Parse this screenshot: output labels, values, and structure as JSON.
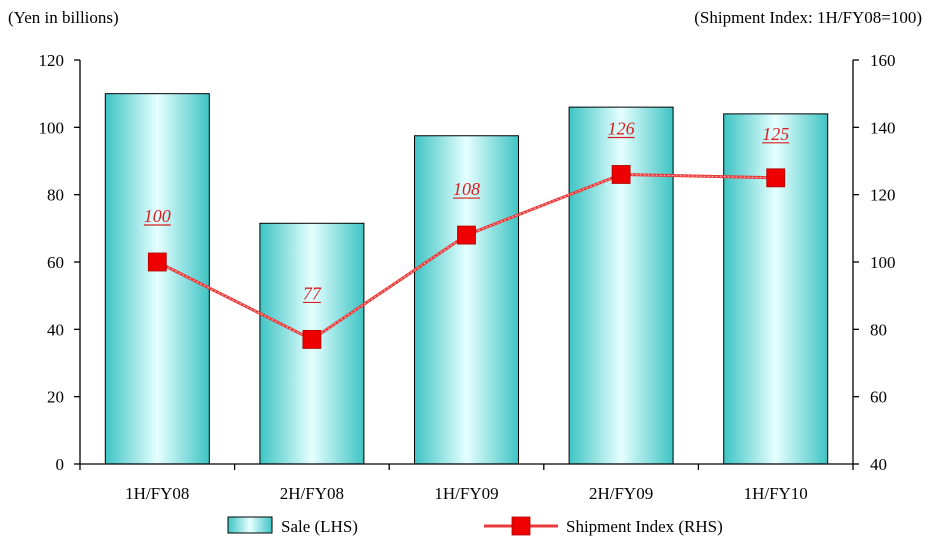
{
  "units": {
    "left": "(Yen in billions)",
    "right": "(Shipment Index: 1H/FY08=100)"
  },
  "colors": {
    "bar_fill_edge": "#3fc4c4",
    "bar_fill_center": "#e6ffff",
    "line": "#e83a3a",
    "marker": "#ee0000",
    "data_label": "#d81e1e"
  },
  "chart_data": {
    "type": "bar",
    "categories": [
      "1H/FY08",
      "2H/FY08",
      "1H/FY09",
      "2H/FY09",
      "1H/FY10"
    ],
    "series": [
      {
        "name": "Sale (LHS)",
        "type": "bar",
        "axis": "left",
        "values": [
          110,
          71.5,
          97.5,
          106,
          104
        ]
      },
      {
        "name": "Shipment Index (RHS)",
        "type": "line",
        "axis": "right",
        "values": [
          100,
          77,
          108,
          126,
          125
        ],
        "labels": [
          "100",
          "77",
          "108",
          "126",
          "125"
        ]
      }
    ],
    "y_left": {
      "lim": [
        0,
        120
      ],
      "ticks": [
        "0",
        "20",
        "40",
        "60",
        "80",
        "100",
        "120"
      ]
    },
    "y_right": {
      "lim": [
        40,
        160
      ],
      "ticks": [
        "40",
        "60",
        "80",
        "100",
        "120",
        "140",
        "160"
      ]
    },
    "legend_placement": "bottom-center",
    "grid": false
  }
}
